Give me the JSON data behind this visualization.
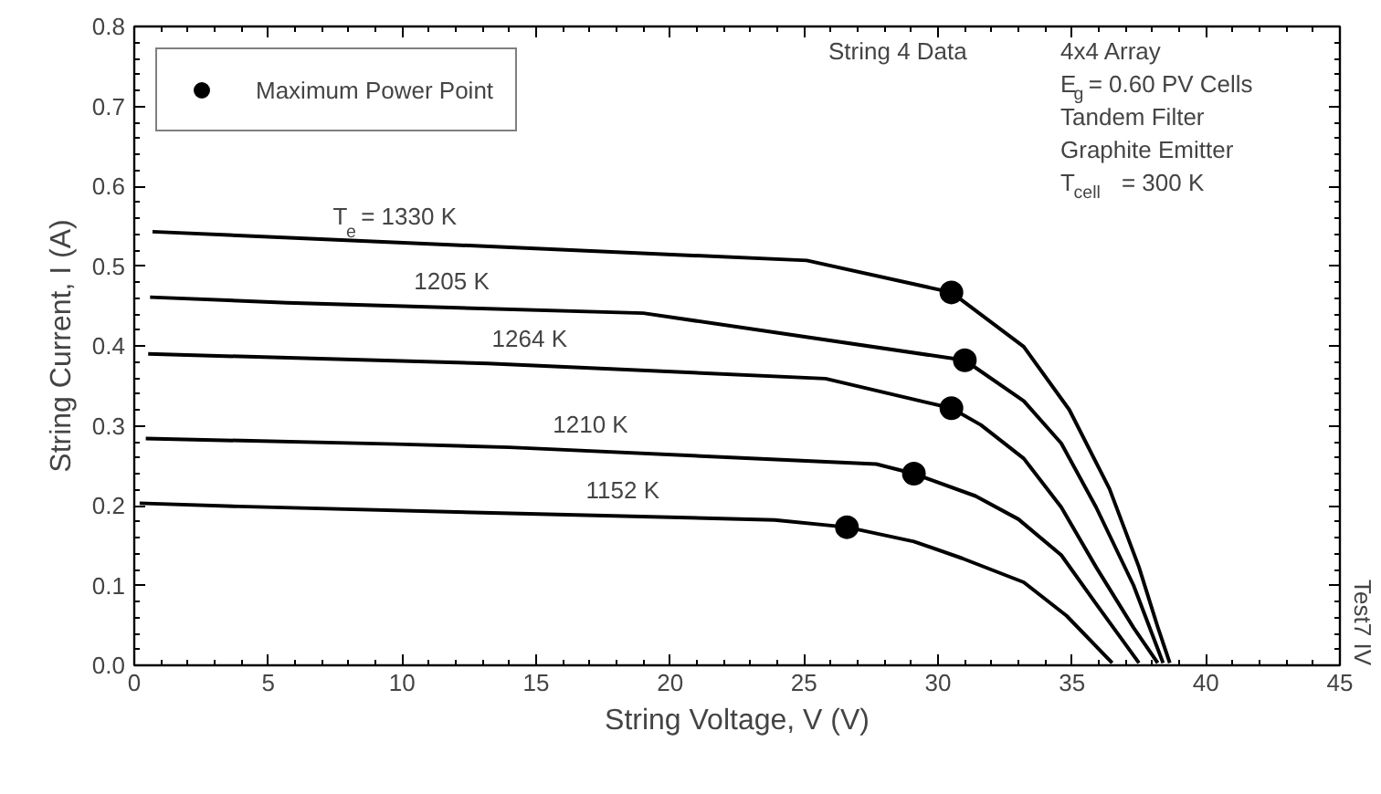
{
  "chart_data": {
    "type": "line",
    "xlabel": "String Voltage, V (V)",
    "ylabel": "String Current, I (A)",
    "xlim": [
      0,
      45
    ],
    "ylim": [
      0,
      0.8
    ],
    "xticks": [
      0,
      5,
      10,
      15,
      20,
      25,
      30,
      35,
      40,
      45
    ],
    "yticks": [
      {
        "value": 0,
        "label": "0.0"
      },
      {
        "value": 0.1,
        "label": "0.1"
      },
      {
        "value": 0.2,
        "label": "0.2"
      },
      {
        "value": 0.3,
        "label": "0.3"
      },
      {
        "value": 0.4,
        "label": "0.4"
      },
      {
        "value": 0.5,
        "label": "0.5"
      },
      {
        "value": 0.6,
        "label": "0.6"
      },
      {
        "value": 0.7,
        "label": "0.7"
      },
      {
        "value": 0.8,
        "label": "0.8"
      }
    ],
    "grid": false,
    "legend": "top left",
    "line_style": "solid",
    "series": [
      {
        "name": "T$_{e}$ = 1330 K",
        "color": "#000000",
        "x": [
          0.68,
          25.1,
          30.5,
          33.2,
          34.9,
          36.4,
          37.5,
          38.2,
          38.65
        ],
        "values": [
          0.543,
          0.507,
          0.467,
          0.399,
          0.32,
          0.221,
          0.123,
          0.048,
          0.003
        ]
      },
      {
        "name": "1205 K",
        "color": "#000000",
        "x": [
          0.59,
          5.7,
          19.0,
          31.0,
          33.2,
          34.6,
          35.9,
          37.3,
          38.4
        ],
        "values": [
          0.461,
          0.454,
          0.441,
          0.382,
          0.331,
          0.278,
          0.198,
          0.1,
          0.003
        ]
      },
      {
        "name": "1264 K",
        "color": "#000000",
        "x": [
          0.52,
          13.2,
          25.8,
          30.5,
          31.6,
          33.2,
          34.6,
          35.9,
          37.3,
          38.2
        ],
        "values": [
          0.39,
          0.378,
          0.359,
          0.322,
          0.301,
          0.259,
          0.198,
          0.123,
          0.047,
          0.003
        ]
      },
      {
        "name": "1210 K",
        "color": "#000000",
        "x": [
          0.43,
          9.8,
          14.0,
          27.7,
          29.1,
          31.4,
          33.0,
          34.6,
          35.9,
          37.5
        ],
        "values": [
          0.284,
          0.277,
          0.273,
          0.252,
          0.24,
          0.212,
          0.183,
          0.138,
          0.077,
          0.003
        ]
      },
      {
        "name": "1152 K",
        "color": "#000000",
        "x": [
          0.2,
          3.9,
          23.9,
          26.6,
          29.1,
          30.9,
          33.2,
          34.8,
          36.5
        ],
        "values": [
          0.203,
          0.199,
          0.182,
          0.173,
          0.155,
          0.134,
          0.104,
          0.062,
          0.003
        ]
      },
      {
        "name": "Maximum Power Point",
        "type": "scatter",
        "marker": "circle",
        "color": "#000000",
        "x": [
          30.5,
          31.0,
          30.5,
          29.1,
          26.6
        ],
        "values": [
          0.467,
          0.382,
          0.322,
          0.24,
          0.173
        ]
      }
    ],
    "annotations": [
      "String 4 Data",
      "4x4 Array",
      "E$_{g}$ = 0.60 PV Cells",
      "Tandem Filter",
      "Graphite Emitter",
      "T$_{cell}$ = 300 K",
      "Test7 IV"
    ]
  }
}
